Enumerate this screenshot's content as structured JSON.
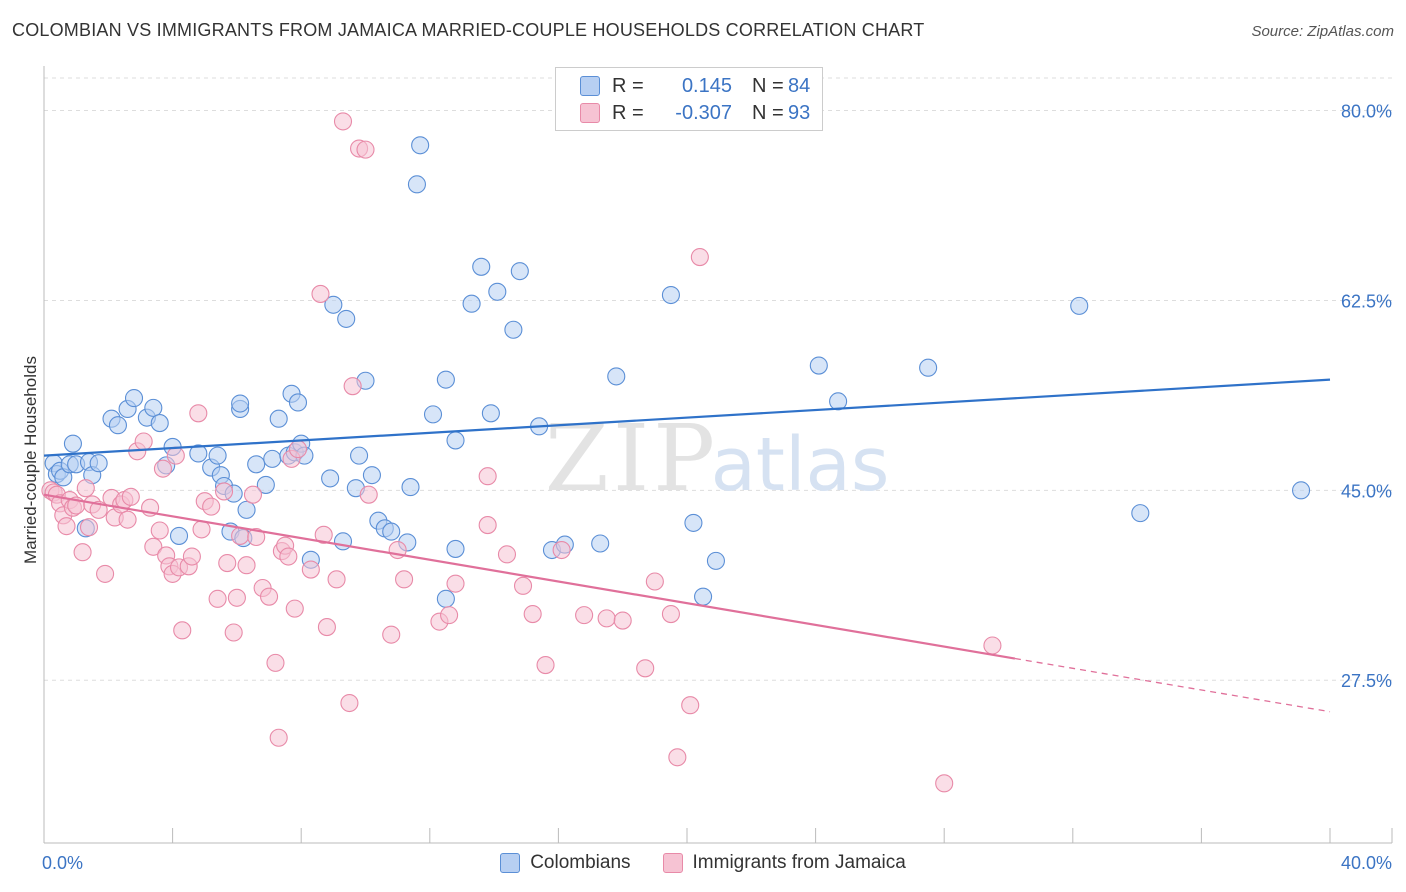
{
  "title": "COLOMBIAN VS IMMIGRANTS FROM JAMAICA MARRIED-COUPLE HOUSEHOLDS CORRELATION CHART",
  "source": "Source: ZipAtlas.com",
  "watermark": {
    "zip": "ZIP",
    "atlas": "atlas"
  },
  "colors": {
    "blue": "#5b8fd6",
    "blue_fill": "#b7cff2",
    "blue_line": "#2f72c9",
    "pink": "#e88aa8",
    "pink_fill": "#f6c3d3",
    "pink_line": "#e0709a",
    "axis_label": "#3b74c4",
    "grid": "#dddddd"
  },
  "legend_top": {
    "rows": [
      {
        "series": "Colombians",
        "r_label": "R =",
        "r_value": "0.145",
        "n_label": "N =",
        "n_value": "84"
      },
      {
        "series": "Immigrants from Jamaica",
        "r_label": "R =",
        "r_value": "-0.307",
        "n_label": "N =",
        "n_value": "93"
      }
    ]
  },
  "chart_data": {
    "type": "scatter",
    "title": "COLOMBIAN VS IMMIGRANTS FROM JAMAICA MARRIED-COUPLE HOUSEHOLDS CORRELATION CHART",
    "xlabel": "",
    "ylabel": "Married-couple Households",
    "xlim": [
      0,
      40
    ],
    "ylim": [
      12.5,
      83
    ],
    "x_ticks": [
      0,
      4,
      8,
      12,
      16,
      20,
      24,
      28,
      32,
      36,
      40
    ],
    "x_tick_labels": [
      "0.0%",
      "",
      "",
      "",
      "",
      "",
      "",
      "",
      "",
      "",
      "40.0%"
    ],
    "y_ticks": [
      27.5,
      45.0,
      62.5,
      80.0
    ],
    "y_tick_labels": [
      "27.5%",
      "45.0%",
      "62.5%",
      "80.0%"
    ],
    "grid": true,
    "legend": [
      "Colombians",
      "Immigrants from Jamaica"
    ],
    "series": [
      {
        "name": "Colombians",
        "r": 0.145,
        "n": 84,
        "trend": {
          "x": [
            0,
            40
          ],
          "y": [
            48.2,
            55.2
          ]
        },
        "points": [
          [
            0.3,
            47.5
          ],
          [
            0.4,
            46.5
          ],
          [
            0.5,
            46.8
          ],
          [
            0.6,
            46.2
          ],
          [
            0.8,
            47.4
          ],
          [
            0.9,
            49.3
          ],
          [
            1.0,
            47.4
          ],
          [
            1.4,
            47.6
          ],
          [
            1.5,
            46.4
          ],
          [
            1.7,
            47.5
          ],
          [
            1.3,
            41.5
          ],
          [
            2.1,
            51.6
          ],
          [
            2.3,
            51.0
          ],
          [
            2.6,
            52.5
          ],
          [
            2.8,
            53.5
          ],
          [
            3.2,
            51.7
          ],
          [
            3.4,
            52.6
          ],
          [
            3.6,
            51.2
          ],
          [
            3.8,
            47.3
          ],
          [
            4.0,
            49.0
          ],
          [
            4.2,
            40.8
          ],
          [
            4.8,
            48.4
          ],
          [
            5.2,
            47.1
          ],
          [
            5.5,
            46.4
          ],
          [
            5.4,
            48.2
          ],
          [
            5.6,
            45.4
          ],
          [
            5.8,
            41.2
          ],
          [
            5.9,
            44.7
          ],
          [
            6.1,
            52.5
          ],
          [
            6.3,
            43.2
          ],
          [
            6.1,
            53.0
          ],
          [
            6.2,
            40.6
          ],
          [
            6.6,
            47.4
          ],
          [
            6.9,
            45.5
          ],
          [
            7.1,
            47.9
          ],
          [
            7.3,
            51.6
          ],
          [
            7.6,
            48.2
          ],
          [
            7.7,
            53.9
          ],
          [
            7.8,
            48.5
          ],
          [
            7.9,
            53.1
          ],
          [
            8.0,
            49.3
          ],
          [
            8.1,
            48.2
          ],
          [
            8.3,
            38.6
          ],
          [
            8.9,
            46.1
          ],
          [
            9.0,
            62.1
          ],
          [
            9.3,
            40.3
          ],
          [
            9.4,
            60.8
          ],
          [
            9.7,
            45.2
          ],
          [
            9.8,
            48.2
          ],
          [
            10.0,
            55.1
          ],
          [
            10.2,
            46.4
          ],
          [
            10.4,
            42.2
          ],
          [
            10.6,
            41.5
          ],
          [
            10.8,
            41.2
          ],
          [
            11.3,
            40.2
          ],
          [
            11.4,
            45.3
          ],
          [
            11.6,
            73.2
          ],
          [
            11.7,
            76.8
          ],
          [
            12.1,
            52.0
          ],
          [
            12.5,
            55.2
          ],
          [
            12.5,
            35.0
          ],
          [
            12.8,
            39.6
          ],
          [
            12.8,
            49.6
          ],
          [
            13.3,
            62.2
          ],
          [
            13.6,
            65.6
          ],
          [
            13.9,
            52.1
          ],
          [
            14.1,
            63.3
          ],
          [
            14.6,
            59.8
          ],
          [
            14.8,
            65.2
          ],
          [
            15.4,
            50.9
          ],
          [
            15.8,
            39.5
          ],
          [
            16.2,
            40.0
          ],
          [
            17.8,
            55.5
          ],
          [
            19.5,
            63.0
          ],
          [
            20.2,
            42.0
          ],
          [
            20.9,
            38.5
          ],
          [
            20.5,
            35.2
          ],
          [
            24.1,
            56.5
          ],
          [
            24.7,
            53.2
          ],
          [
            27.5,
            56.3
          ],
          [
            32.2,
            62.0
          ],
          [
            34.1,
            42.9
          ],
          [
            39.1,
            45.0
          ],
          [
            17.3,
            40.1
          ]
        ]
      },
      {
        "name": "Immigrants from Jamaica",
        "r": -0.307,
        "n": 93,
        "trend": {
          "x": [
            0,
            30.2
          ],
          "y": [
            44.6,
            29.5
          ]
        },
        "trend_dashed": {
          "x": [
            30.2,
            40
          ],
          "y": [
            29.5,
            24.6
          ]
        },
        "points": [
          [
            0.2,
            45.0
          ],
          [
            0.3,
            44.8
          ],
          [
            0.4,
            44.6
          ],
          [
            0.5,
            43.8
          ],
          [
            0.6,
            42.7
          ],
          [
            0.7,
            41.7
          ],
          [
            0.8,
            44.1
          ],
          [
            0.9,
            43.4
          ],
          [
            1.0,
            43.6
          ],
          [
            1.2,
            39.3
          ],
          [
            1.3,
            45.2
          ],
          [
            1.4,
            41.6
          ],
          [
            1.5,
            43.7
          ],
          [
            1.7,
            43.2
          ],
          [
            1.9,
            37.3
          ],
          [
            2.1,
            44.3
          ],
          [
            2.2,
            42.5
          ],
          [
            2.4,
            43.7
          ],
          [
            2.5,
            44.1
          ],
          [
            2.7,
            44.4
          ],
          [
            2.6,
            42.3
          ],
          [
            2.9,
            48.6
          ],
          [
            3.1,
            49.5
          ],
          [
            3.3,
            43.4
          ],
          [
            3.4,
            39.8
          ],
          [
            3.6,
            41.3
          ],
          [
            3.7,
            47.0
          ],
          [
            3.8,
            39.0
          ],
          [
            3.9,
            38.0
          ],
          [
            4.0,
            37.3
          ],
          [
            4.1,
            48.2
          ],
          [
            4.2,
            37.9
          ],
          [
            4.3,
            32.1
          ],
          [
            4.5,
            38.0
          ],
          [
            4.6,
            38.9
          ],
          [
            4.8,
            52.1
          ],
          [
            4.9,
            41.4
          ],
          [
            5.0,
            44.0
          ],
          [
            5.2,
            43.5
          ],
          [
            5.4,
            35.0
          ],
          [
            5.6,
            44.9
          ],
          [
            5.7,
            38.3
          ],
          [
            5.9,
            31.9
          ],
          [
            6.0,
            35.1
          ],
          [
            6.1,
            40.8
          ],
          [
            6.3,
            38.1
          ],
          [
            6.5,
            44.6
          ],
          [
            6.6,
            40.7
          ],
          [
            6.8,
            36.0
          ],
          [
            7.0,
            35.2
          ],
          [
            7.2,
            29.1
          ],
          [
            7.3,
            22.2
          ],
          [
            7.4,
            39.4
          ],
          [
            7.5,
            39.9
          ],
          [
            7.6,
            38.9
          ],
          [
            7.7,
            47.9
          ],
          [
            7.8,
            34.1
          ],
          [
            7.9,
            48.8
          ],
          [
            8.3,
            37.7
          ],
          [
            8.6,
            63.1
          ],
          [
            8.7,
            40.9
          ],
          [
            8.8,
            32.4
          ],
          [
            9.1,
            36.8
          ],
          [
            9.3,
            79.0
          ],
          [
            9.5,
            25.4
          ],
          [
            9.6,
            54.6
          ],
          [
            9.8,
            76.5
          ],
          [
            10.0,
            76.4
          ],
          [
            10.1,
            44.6
          ],
          [
            10.8,
            31.7
          ],
          [
            11.0,
            39.5
          ],
          [
            11.2,
            36.8
          ],
          [
            12.3,
            32.9
          ],
          [
            12.6,
            33.5
          ],
          [
            12.8,
            36.4
          ],
          [
            13.8,
            46.3
          ],
          [
            13.8,
            41.8
          ],
          [
            14.4,
            39.1
          ],
          [
            14.9,
            36.2
          ],
          [
            15.2,
            33.6
          ],
          [
            15.6,
            28.9
          ],
          [
            16.1,
            39.5
          ],
          [
            16.8,
            33.5
          ],
          [
            17.5,
            33.2
          ],
          [
            18.0,
            33.0
          ],
          [
            18.7,
            28.6
          ],
          [
            19.0,
            36.6
          ],
          [
            19.5,
            33.6
          ],
          [
            19.7,
            20.4
          ],
          [
            20.1,
            25.2
          ],
          [
            20.4,
            66.5
          ],
          [
            28.0,
            18.0
          ],
          [
            29.5,
            30.7
          ]
        ]
      }
    ]
  }
}
